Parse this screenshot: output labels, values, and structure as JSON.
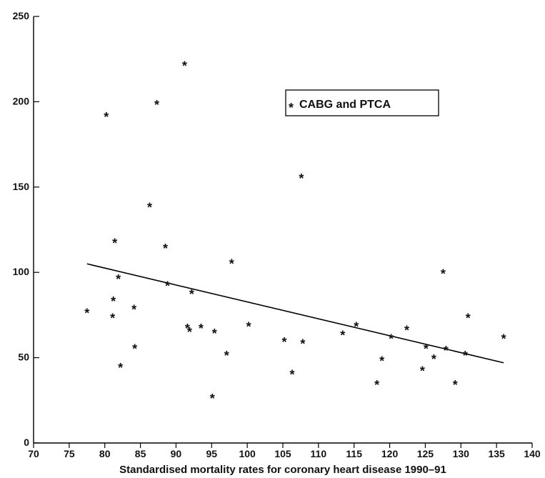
{
  "chart_data": {
    "type": "scatter",
    "title": "",
    "xlabel": "Standardised mortality rates for coronary heart disease 1990–91",
    "ylabel": "",
    "xlim": [
      70,
      140
    ],
    "ylim": [
      0,
      250
    ],
    "x_ticks": [
      70,
      75,
      80,
      85,
      90,
      95,
      100,
      105,
      110,
      115,
      120,
      125,
      130,
      135,
      140
    ],
    "y_ticks": [
      0,
      50,
      100,
      150,
      200,
      250
    ],
    "grid": false,
    "legend": {
      "position": "top-right",
      "entries": [
        "CABG and PTCA"
      ],
      "marker": "*"
    },
    "series": [
      {
        "name": "CABG and PTCA",
        "marker": "*",
        "points": [
          [
            77.5,
            76
          ],
          [
            80.2,
            191
          ],
          [
            81.1,
            73
          ],
          [
            81.2,
            83
          ],
          [
            81.4,
            117
          ],
          [
            81.9,
            96
          ],
          [
            82.2,
            44
          ],
          [
            84.1,
            78
          ],
          [
            84.2,
            55
          ],
          [
            86.3,
            138
          ],
          [
            87.3,
            198
          ],
          [
            88.5,
            114
          ],
          [
            88.8,
            92
          ],
          [
            91.2,
            221
          ],
          [
            91.6,
            67
          ],
          [
            91.9,
            65
          ],
          [
            92.2,
            87
          ],
          [
            93.5,
            67
          ],
          [
            95.1,
            26
          ],
          [
            95.4,
            64
          ],
          [
            97.1,
            51
          ],
          [
            97.8,
            105
          ],
          [
            100.2,
            68
          ],
          [
            105.2,
            59
          ],
          [
            106.3,
            40
          ],
          [
            107.6,
            155
          ],
          [
            107.8,
            58
          ],
          [
            113.4,
            63
          ],
          [
            115.3,
            68
          ],
          [
            118.2,
            34
          ],
          [
            118.9,
            48
          ],
          [
            120.2,
            61
          ],
          [
            122.4,
            66
          ],
          [
            124.6,
            42
          ],
          [
            125.1,
            55
          ],
          [
            126.2,
            49
          ],
          [
            127.5,
            99
          ],
          [
            127.9,
            54
          ],
          [
            129.2,
            34
          ],
          [
            130.6,
            51
          ],
          [
            131.0,
            73
          ],
          [
            136.0,
            61
          ]
        ]
      }
    ],
    "regression_line": {
      "x": [
        77.5,
        136
      ],
      "y": [
        105,
        47
      ]
    }
  }
}
